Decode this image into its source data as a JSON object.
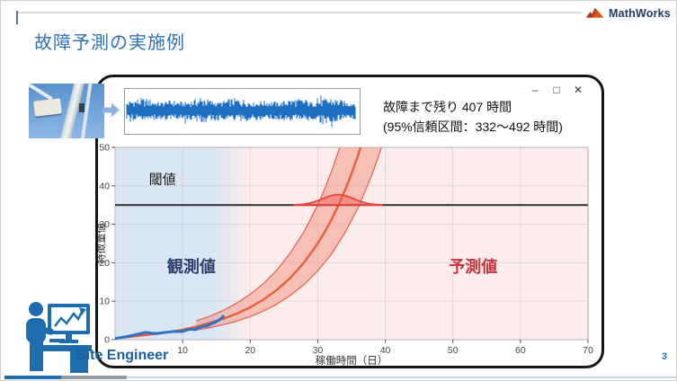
{
  "slide": {
    "title": "故障予測の実施例",
    "page_number": "3",
    "brand_name": "MathWorks",
    "engineer_label": "Site Engineer",
    "title_color": "#2d72b7",
    "accent_blue": "#1d6dae"
  },
  "window": {
    "minimize_glyph": "–",
    "maximize_glyph": "□",
    "close_glyph": "✕",
    "callout_line1": "故障まで残り 407 時間",
    "callout_line2": "(95%信頼区間：332～492 時間)"
  },
  "signal_plot": {
    "name": "sensor-signal-waveform",
    "color": "#1b6ec2"
  },
  "chart_data": {
    "type": "line",
    "title": "",
    "xlabel": "稼働時間（日）",
    "ylabel": "特徴量値",
    "xlim": [
      0,
      70
    ],
    "ylim": [
      0,
      50
    ],
    "xticks": [
      10,
      20,
      30,
      40,
      50,
      60,
      70
    ],
    "yticks": [
      0,
      10,
      20,
      30,
      40,
      50
    ],
    "grid": true,
    "grid_color": "rgba(130,130,155,0.20)",
    "threshold": {
      "value": 35,
      "label": "閾値",
      "color": "#3b3b3b",
      "label_x": 5,
      "label_y": 40.5
    },
    "regions": [
      {
        "name": "observed-region",
        "x0": 0,
        "x1": 16,
        "color": "#dbe6f4"
      },
      {
        "name": "predicted-region",
        "x0": 16,
        "x1": 70,
        "color": "#fceceb"
      }
    ],
    "annotations": [
      {
        "text": "観測値",
        "x": 11.3,
        "y": 17.5,
        "color": "#2b3f6b"
      },
      {
        "text": "予測値",
        "x": 53,
        "y": 17.5,
        "color": "#c4373b"
      }
    ],
    "series": [
      {
        "name": "観測値",
        "type": "noisy-line",
        "color": "#2e72c6",
        "width": 3,
        "points": [
          [
            0,
            0.3
          ],
          [
            1,
            0.6
          ],
          [
            2,
            0.9
          ],
          [
            3,
            1.3
          ],
          [
            4,
            1.7
          ],
          [
            4.6,
            1.9
          ],
          [
            5.4,
            1.7
          ],
          [
            6.2,
            1.6
          ],
          [
            7,
            1.8
          ],
          [
            8,
            2.0
          ],
          [
            9,
            2.15
          ],
          [
            10,
            2.1
          ],
          [
            10.6,
            2.5
          ],
          [
            11.2,
            2.7
          ],
          [
            11.8,
            2.6
          ],
          [
            12.4,
            3.1
          ],
          [
            13,
            3.4
          ],
          [
            13.6,
            3.6
          ],
          [
            14.2,
            4.1
          ],
          [
            14.8,
            4.5
          ],
          [
            15.3,
            5.0
          ],
          [
            15.7,
            5.5
          ],
          [
            16,
            6.1
          ]
        ]
      },
      {
        "name": "予測値",
        "type": "line",
        "color": "#e4603a",
        "width": 2.4,
        "points": [
          [
            0,
            0.4
          ],
          [
            2,
            0.7
          ],
          [
            4,
            1.1
          ],
          [
            6,
            1.5
          ],
          [
            8,
            2.0
          ],
          [
            10,
            2.6
          ],
          [
            12,
            3.4
          ],
          [
            14,
            4.37
          ],
          [
            16,
            5.44
          ],
          [
            18,
            6.76
          ],
          [
            20,
            8.41
          ],
          [
            22,
            10.46
          ],
          [
            24,
            13.01
          ],
          [
            26,
            16.18
          ],
          [
            28,
            20.12
          ],
          [
            30,
            25.03
          ],
          [
            31,
            27.91
          ],
          [
            32,
            31.12
          ],
          [
            33,
            34.71
          ],
          [
            34,
            38.71
          ],
          [
            35,
            43.16
          ],
          [
            36,
            48.13
          ],
          [
            37,
            53.7
          ]
        ]
      }
    ],
    "confidence_band": {
      "label": "95%信頼区間",
      "fill": "rgba(242,140,120,0.45)",
      "edge": "#e2604d",
      "upper": [
        [
          12,
          4.9
        ],
        [
          14,
          6.1
        ],
        [
          16,
          7.6
        ],
        [
          18,
          9.5
        ],
        [
          20,
          11.8
        ],
        [
          22,
          14.6
        ],
        [
          24,
          18.2
        ],
        [
          26,
          22.7
        ],
        [
          28,
          28.2
        ],
        [
          30,
          35.0
        ],
        [
          31,
          39.1
        ],
        [
          32,
          43.6
        ],
        [
          33,
          48.6
        ],
        [
          34,
          54.2
        ],
        [
          35,
          60.4
        ]
      ],
      "lower": [
        [
          12,
          2.5
        ],
        [
          14,
          3.1
        ],
        [
          16,
          3.9
        ],
        [
          18,
          4.8
        ],
        [
          20,
          6.0
        ],
        [
          22,
          7.5
        ],
        [
          24,
          9.3
        ],
        [
          26,
          11.6
        ],
        [
          28,
          14.4
        ],
        [
          30,
          17.9
        ],
        [
          32,
          22.2
        ],
        [
          34,
          27.7
        ],
        [
          36,
          34.4
        ],
        [
          38,
          42.8
        ],
        [
          39,
          47.7
        ],
        [
          40,
          53.1
        ]
      ]
    },
    "failure_pdf": {
      "mean": 33,
      "sigma": 2.3,
      "amplitude": 2.7,
      "baseline": 35,
      "fill": "rgba(240,95,80,0.5)",
      "edge": "#e6453c"
    }
  }
}
